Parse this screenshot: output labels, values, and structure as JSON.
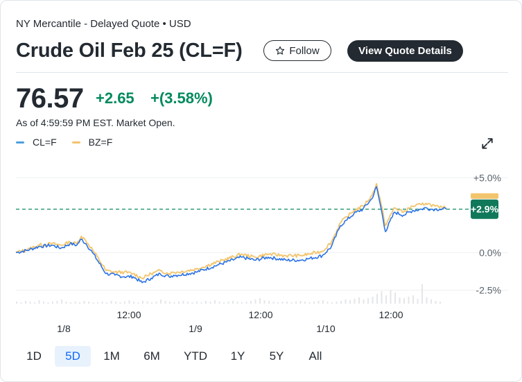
{
  "header": {
    "subtitle": "NY Mercantile - Delayed Quote • USD",
    "title": "Crude Oil Feb 25 (CL=F)",
    "follow_label": "Follow",
    "quote_details_label": "View Quote Details"
  },
  "quote": {
    "price": "76.57",
    "change": "+2.65",
    "change_pct": "+(3.58%)",
    "as_of": "As of 4:59:59 PM EST. Market Open."
  },
  "legend": [
    {
      "label": "CL=F",
      "color": "#4a9fe0"
    },
    {
      "label": "BZ=F",
      "color": "#f2c46c"
    }
  ],
  "icons": {
    "follow": "star-outline-icon",
    "expand": "expand-arrows-icon"
  },
  "colors": {
    "positive": "#008a5c",
    "cl_line": "#2a72e5",
    "bz_line": "#f2c46c",
    "active_range": "#0f69ff"
  },
  "range_buttons": [
    "1D",
    "5D",
    "1M",
    "6M",
    "YTD",
    "1Y",
    "5Y",
    "All"
  ],
  "active_range": "5D",
  "chart_data": {
    "type": "line",
    "x_tick_labels": [
      "12:00",
      "12:00",
      "12:00"
    ],
    "date_labels": [
      "1/8",
      "1/9",
      "1/10"
    ],
    "y_tick_labels": [
      "+5.0%",
      "0.0%",
      "-2.5%"
    ],
    "y_ticks": [
      5.0,
      0.0,
      -2.5
    ],
    "ylim": [
      -3.4,
      6.4
    ],
    "reference_line": {
      "value": 2.9,
      "label": "+2.9%"
    },
    "grid": true,
    "legend_position": "top-left",
    "series": [
      {
        "name": "CL=F",
        "x": [
          0,
          3,
          5,
          8,
          10,
          12,
          13.5,
          14.5,
          15.5,
          17,
          20,
          22,
          24,
          26,
          28,
          30,
          32,
          34,
          35,
          36,
          40,
          45,
          50,
          53,
          56,
          60,
          63,
          65,
          68,
          70,
          72,
          73.5,
          75,
          77,
          79,
          80,
          81,
          82,
          84,
          86,
          88,
          90,
          91,
          92,
          93,
          94,
          95.5
        ],
        "y": [
          0.0,
          0.2,
          0.4,
          0.5,
          0.3,
          0.6,
          0.5,
          0.9,
          0.6,
          0.0,
          -1.4,
          -1.5,
          -1.6,
          -1.6,
          -2.0,
          -1.7,
          -1.4,
          -1.6,
          -1.5,
          -1.5,
          -1.3,
          -0.8,
          -0.3,
          -0.5,
          -0.3,
          -0.5,
          -0.5,
          -0.4,
          -0.2,
          0.4,
          1.8,
          2.2,
          2.6,
          2.9,
          3.6,
          4.4,
          3.0,
          1.4,
          2.7,
          2.5,
          2.8,
          2.9,
          3.0,
          2.9,
          2.9,
          2.9,
          2.9
        ]
      },
      {
        "name": "BZ=F",
        "x": [
          0,
          3,
          5,
          8,
          10,
          12,
          13.5,
          14.5,
          15.5,
          17,
          20,
          22,
          24,
          26,
          28,
          30,
          32,
          34,
          35,
          36,
          40,
          45,
          50,
          53,
          56,
          60,
          63,
          65,
          68,
          70,
          72,
          73.5,
          75,
          77,
          79,
          80,
          81,
          82,
          84,
          86,
          88,
          90,
          91,
          92,
          93,
          94,
          95.5
        ],
        "y": [
          0.0,
          0.25,
          0.5,
          0.6,
          0.5,
          0.7,
          0.6,
          1.1,
          0.8,
          0.2,
          -1.2,
          -1.3,
          -1.3,
          -1.4,
          -1.7,
          -1.4,
          -1.2,
          -1.4,
          -1.3,
          -1.3,
          -1.1,
          -0.6,
          -0.1,
          -0.3,
          -0.1,
          -0.2,
          -0.2,
          -0.1,
          0.1,
          0.7,
          2.0,
          2.4,
          2.8,
          3.1,
          3.8,
          4.6,
          3.3,
          1.8,
          3.0,
          2.7,
          3.1,
          3.2,
          3.3,
          3.2,
          3.1,
          3.0,
          3.0
        ]
      }
    ]
  }
}
